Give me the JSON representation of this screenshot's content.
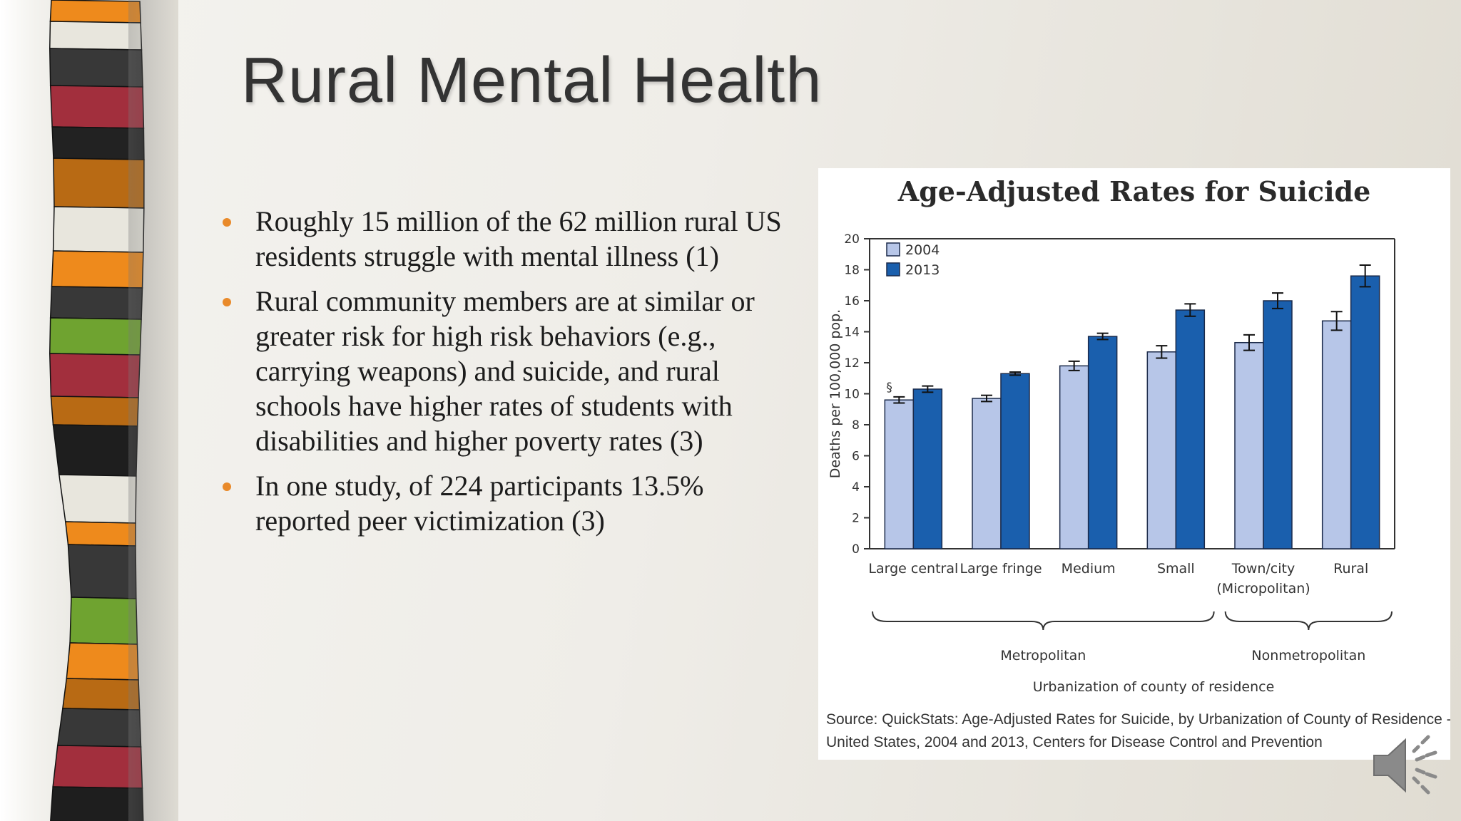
{
  "slide": {
    "title": "Rural Mental Health",
    "bullets": [
      "Roughly 15 million of the 62 million rural US residents struggle with mental illness (1)",
      "Rural community members are at similar or greater risk for high risk behaviors (e.g., carrying weapons) and suicide, and rural schools have higher rates of students with disabilities and higher poverty rates (3)",
      "In one study, of 224 participants 13.5% reported peer victimization (3)"
    ],
    "bullet_color": "#e98a2a",
    "audio_icon": "speaker-icon"
  },
  "chart_data": {
    "type": "bar",
    "title": "Age-Adjusted Rates for Suicide",
    "ylabel": "Deaths per 100,000 pop.",
    "xlabel": "Urbanization of county of residence",
    "ylim": [
      0,
      20
    ],
    "yticks": [
      "0",
      "2",
      "4",
      "6",
      "8",
      "10",
      "12",
      "14",
      "16",
      "18",
      "20"
    ],
    "categories": [
      {
        "label": "Large central",
        "label2": ""
      },
      {
        "label": "Large fringe",
        "label2": ""
      },
      {
        "label": "Medium",
        "label2": ""
      },
      {
        "label": "Small",
        "label2": ""
      },
      {
        "label": "Town/city",
        "label2": "(Micropolitan)"
      },
      {
        "label": "Rural",
        "label2": ""
      }
    ],
    "series": [
      {
        "name": "2004",
        "color": "#b7c6e8",
        "values": [
          9.6,
          9.7,
          11.8,
          12.7,
          13.3,
          14.7
        ],
        "errors": [
          0.2,
          0.2,
          0.3,
          0.4,
          0.5,
          0.6
        ]
      },
      {
        "name": "2013",
        "color": "#1a5fad",
        "values": [
          10.3,
          11.3,
          13.7,
          15.4,
          16.0,
          17.6
        ],
        "errors": [
          0.2,
          0.1,
          0.2,
          0.4,
          0.5,
          0.7
        ]
      }
    ],
    "annotation": "§",
    "groups": [
      {
        "label": "Metropolitan"
      },
      {
        "label": "Nonmetropolitan"
      }
    ],
    "source_lines": [
      "Source: QuickStats: Age-Adjusted Rates for Suicide, by Urbanization of County of Residence -",
      "United States, 2004 and 2013, Centers for Disease Control and Prevention"
    ],
    "grid": false,
    "legend_position": "top-left"
  }
}
